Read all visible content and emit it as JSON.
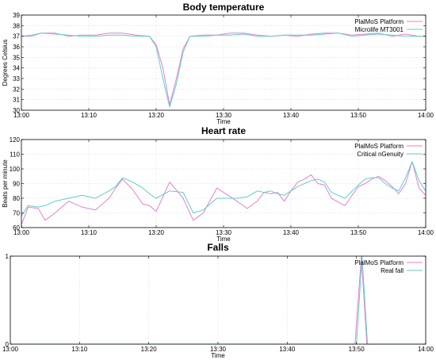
{
  "colors": {
    "pink": "#e87fcf",
    "cyan": "#5fcfc8"
  },
  "chart_data": [
    {
      "type": "line",
      "title": "Body temperature",
      "xlabel": "Time",
      "ylabel": "Degrees Celsius",
      "xlim": [
        0,
        60
      ],
      "ylim": [
        30,
        39
      ],
      "xticks": [
        0,
        10,
        20,
        30,
        40,
        50,
        60
      ],
      "xticklabels": [
        "13:00",
        "13:10",
        "13:20",
        "13:30",
        "13:40",
        "13:50",
        "14:00"
      ],
      "yticks": [
        30,
        31,
        32,
        33,
        34,
        35,
        36,
        37,
        38,
        39
      ],
      "yticklabels": [
        "30",
        "31",
        "32",
        "33",
        "34",
        "35",
        "36",
        "37",
        "38",
        "39"
      ],
      "grid": true,
      "legend": "top-right",
      "series": [
        {
          "name": "PlalMoS Platform",
          "color": "pink",
          "x": [
            0,
            1.5,
            3,
            5,
            7,
            9,
            11,
            13,
            15,
            17,
            19,
            20,
            21,
            22,
            23,
            24,
            25,
            27,
            29,
            31,
            33,
            35,
            37,
            39,
            41,
            43,
            45,
            47,
            49,
            51,
            53,
            55,
            57,
            59,
            60
          ],
          "y": [
            37.0,
            37.0,
            37.3,
            37.3,
            37.0,
            37.1,
            37.1,
            37.3,
            37.3,
            37.1,
            37.0,
            36.2,
            34.0,
            30.5,
            33.0,
            35.8,
            37.0,
            37.1,
            37.1,
            37.3,
            37.3,
            37.1,
            37.0,
            37.1,
            37.0,
            37.2,
            37.3,
            37.3,
            37.1,
            37.2,
            37.3,
            37.0,
            37.2,
            37.0,
            37.0
          ]
        },
        {
          "name": "Microlife MT3001",
          "color": "cyan",
          "x": [
            0,
            1.5,
            3,
            5,
            7,
            9,
            11,
            13,
            15,
            17,
            19,
            20,
            21,
            22,
            23,
            24,
            25,
            27,
            29,
            31,
            33,
            35,
            37,
            39,
            41,
            43,
            45,
            47,
            49,
            51,
            53,
            55,
            57,
            59,
            60
          ],
          "y": [
            37.0,
            37.1,
            37.3,
            37.2,
            37.1,
            37.0,
            37.0,
            37.1,
            37.1,
            37.0,
            37.0,
            36.0,
            33.0,
            30.3,
            32.5,
            35.5,
            37.0,
            37.0,
            37.1,
            37.1,
            37.2,
            37.0,
            37.0,
            37.1,
            37.1,
            37.1,
            37.2,
            37.3,
            37.0,
            37.1,
            37.2,
            37.1,
            37.0,
            37.0,
            37.0
          ]
        }
      ]
    },
    {
      "type": "line",
      "title": "Heart rate",
      "xlabel": "Time",
      "ylabel": "Beats per minute",
      "xlim": [
        0,
        60
      ],
      "ylim": [
        60,
        120
      ],
      "xticks": [
        0,
        10,
        20,
        30,
        40,
        50,
        60
      ],
      "xticklabels": [
        "13:00",
        "13:10",
        "13:20",
        "13:30",
        "13:40",
        "13:50",
        "14:00"
      ],
      "yticks": [
        60,
        70,
        80,
        90,
        100,
        110,
        120
      ],
      "yticklabels": [
        "60",
        "70",
        "80",
        "90",
        "100",
        "110",
        "120"
      ],
      "grid": true,
      "legend": "top-right",
      "series": [
        {
          "name": "PlalMoS Platform",
          "color": "pink",
          "x": [
            0,
            1,
            2.5,
            3.5,
            5,
            7,
            9,
            11,
            13,
            14,
            15,
            16.5,
            18,
            19,
            20,
            22,
            24,
            25.5,
            27,
            29,
            31,
            32,
            33.5,
            35,
            36,
            37,
            38,
            39,
            40,
            41,
            42,
            43,
            44,
            45,
            46,
            48,
            50,
            51,
            52,
            53,
            54,
            55,
            56,
            57,
            58,
            59,
            60
          ],
          "y": [
            62,
            74,
            73,
            65,
            70,
            78,
            74,
            72,
            80,
            87,
            93,
            86,
            76,
            75,
            71,
            91,
            80,
            65,
            70,
            87,
            81,
            78,
            73,
            78,
            84,
            83,
            84,
            78,
            85,
            91,
            93,
            96,
            90,
            89,
            80,
            75,
            88,
            90,
            93,
            95,
            92,
            88,
            83,
            90,
            105,
            87,
            82
          ]
        },
        {
          "name": "Critical nGenuity",
          "color": "cyan",
          "x": [
            0,
            1,
            2.5,
            3.5,
            5,
            7,
            9,
            11,
            13,
            14,
            15,
            16.5,
            18,
            19,
            20,
            22,
            24,
            25.5,
            27,
            29,
            31,
            32,
            33.5,
            35,
            36,
            37,
            38,
            39,
            40,
            41,
            42,
            43,
            44,
            45,
            46,
            48,
            50,
            51,
            52,
            53,
            54,
            55,
            56,
            57,
            58,
            59,
            60
          ],
          "y": [
            68,
            75,
            74,
            75,
            78,
            80,
            82,
            80,
            85,
            88,
            94,
            91,
            87,
            83,
            80,
            85,
            84,
            70,
            72,
            80,
            80,
            80,
            81,
            85,
            84,
            85,
            83,
            82,
            85,
            88,
            90,
            92,
            93,
            91,
            84,
            80,
            89,
            93,
            94,
            94,
            90,
            87,
            85,
            94,
            105,
            92,
            85
          ]
        }
      ]
    },
    {
      "type": "line",
      "title": "Falls",
      "xlabel": "Time",
      "ylabel": "",
      "xlim": [
        0,
        60
      ],
      "ylim": [
        0,
        1
      ],
      "xticks": [
        0,
        10,
        20,
        30,
        40,
        50,
        60
      ],
      "xticklabels": [
        "13:00",
        "13:10",
        "13:20",
        "13:30",
        "13:40",
        "13:50",
        "14:00"
      ],
      "yticks": [
        0,
        1
      ],
      "yticklabels": [
        "0",
        "1"
      ],
      "grid": true,
      "legend": "top-right",
      "series": [
        {
          "name": "PlalMoS Platform",
          "color": "pink",
          "x": [
            0,
            49.8,
            50.7,
            51.5,
            60
          ],
          "y": [
            0,
            0,
            1,
            0,
            0
          ]
        },
        {
          "name": "Real fall",
          "color": "cyan",
          "x": [
            0,
            50.0,
            50.8,
            51.6,
            60
          ],
          "y": [
            0,
            0,
            1,
            0,
            0
          ]
        }
      ]
    }
  ]
}
